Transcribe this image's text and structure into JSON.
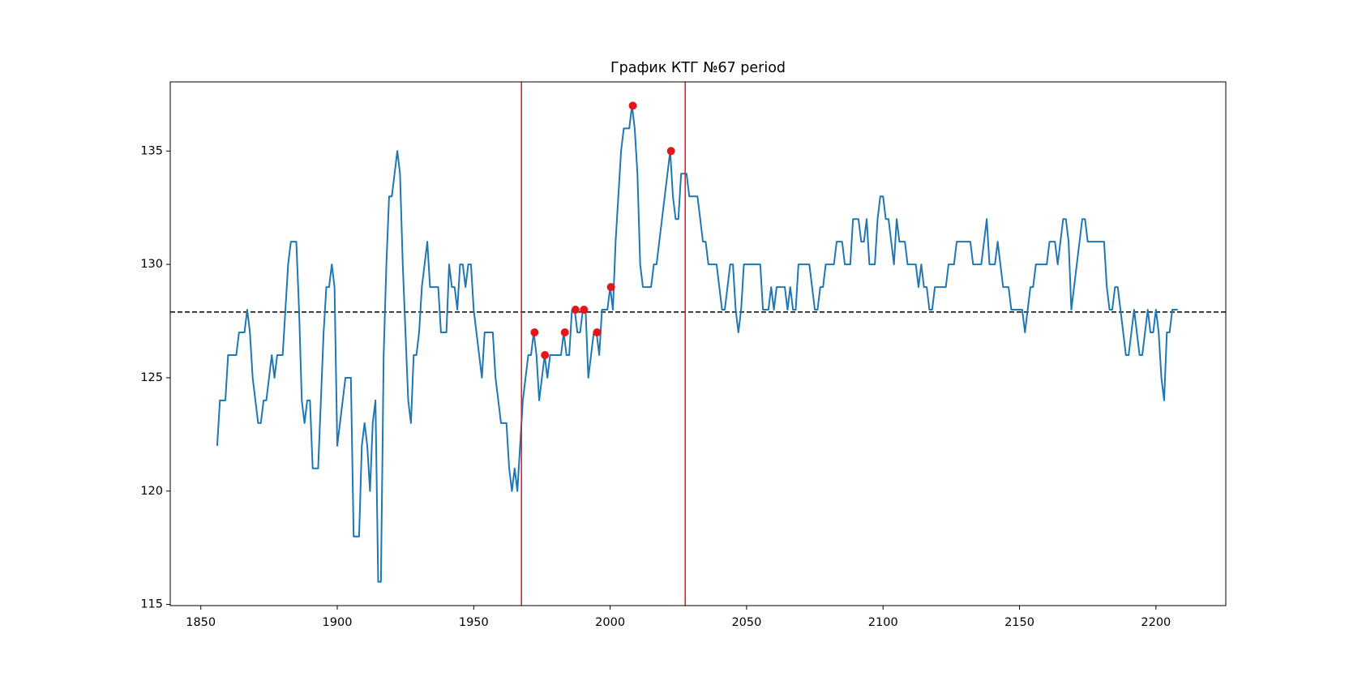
{
  "chart_data": {
    "type": "line",
    "title": "График КТГ №67 period",
    "xlim": [
      1838.8,
      2225.6
    ],
    "xticks": [
      1850,
      1900,
      1950,
      2000,
      2050,
      2100,
      2150,
      2200
    ],
    "ylim": [
      114.95,
      138.05
    ],
    "yticks": [
      115,
      120,
      125,
      130,
      135
    ],
    "x": [
      1856,
      1857,
      1858,
      1859,
      1860,
      1861,
      1862,
      1863,
      1864,
      1865,
      1866,
      1867,
      1868,
      1869,
      1870,
      1871,
      1872,
      1873,
      1874,
      1875,
      1876,
      1877,
      1878,
      1879,
      1880,
      1881,
      1882,
      1883,
      1884,
      1885,
      1886,
      1887,
      1888,
      1889,
      1890,
      1891,
      1892,
      1893,
      1894,
      1895,
      1896,
      1897,
      1898,
      1899,
      1900,
      1901,
      1902,
      1903,
      1904,
      1905,
      1906,
      1907,
      1908,
      1909,
      1910,
      1911,
      1912,
      1913,
      1914,
      1915,
      1916,
      1917,
      1918,
      1919,
      1920,
      1921,
      1922,
      1923,
      1924,
      1925,
      1926,
      1927,
      1928,
      1929,
      1930,
      1931,
      1932,
      1933,
      1934,
      1935,
      1936,
      1937,
      1938,
      1939,
      1940,
      1941,
      1942,
      1943,
      1944,
      1945,
      1946,
      1947,
      1948,
      1949,
      1950,
      1951,
      1952,
      1953,
      1954,
      1955,
      1956,
      1957,
      1958,
      1959,
      1960,
      1961,
      1962,
      1963,
      1964,
      1965,
      1966,
      1967,
      1968,
      1969,
      1970,
      1971,
      1972,
      1973,
      1974,
      1975,
      1976,
      1977,
      1978,
      1979,
      1980,
      1981,
      1982,
      1983,
      1984,
      1985,
      1986,
      1987,
      1988,
      1989,
      1990,
      1991,
      1992,
      1993,
      1994,
      1995,
      1996,
      1997,
      1998,
      1999,
      2000,
      2001,
      2002,
      2003,
      2004,
      2005,
      2006,
      2007,
      2008,
      2009,
      2010,
      2011,
      2012,
      2013,
      2014,
      2015,
      2016,
      2017,
      2018,
      2019,
      2020,
      2021,
      2022,
      2023,
      2024,
      2025,
      2026,
      2027,
      2028,
      2029,
      2030,
      2031,
      2032,
      2033,
      2034,
      2035,
      2036,
      2037,
      2038,
      2039,
      2040,
      2041,
      2042,
      2043,
      2044,
      2045,
      2046,
      2047,
      2048,
      2049,
      2050,
      2051,
      2052,
      2053,
      2054,
      2055,
      2056,
      2057,
      2058,
      2059,
      2060,
      2061,
      2062,
      2063,
      2064,
      2065,
      2066,
      2067,
      2068,
      2069,
      2070,
      2071,
      2072,
      2073,
      2074,
      2075,
      2076,
      2077,
      2078,
      2079,
      2080,
      2081,
      2082,
      2083,
      2084,
      2085,
      2086,
      2087,
      2088,
      2089,
      2090,
      2091,
      2092,
      2093,
      2094,
      2095,
      2096,
      2097,
      2098,
      2099,
      2100,
      2101,
      2102,
      2103,
      2104,
      2105,
      2106,
      2107,
      2108,
      2109,
      2110,
      2111,
      2112,
      2113,
      2114,
      2115,
      2116,
      2117,
      2118,
      2119,
      2120,
      2121,
      2122,
      2123,
      2124,
      2125,
      2126,
      2127,
      2128,
      2129,
      2130,
      2131,
      2132,
      2133,
      2134,
      2135,
      2136,
      2137,
      2138,
      2139,
      2140,
      2141,
      2142,
      2143,
      2144,
      2145,
      2146,
      2147,
      2148,
      2149,
      2150,
      2151,
      2152,
      2153,
      2154,
      2155,
      2156,
      2157,
      2158,
      2159,
      2160,
      2161,
      2162,
      2163,
      2164,
      2165,
      2166,
      2167,
      2168,
      2169,
      2170,
      2171,
      2172,
      2173,
      2174,
      2175,
      2176,
      2177,
      2178,
      2179,
      2180,
      2181,
      2182,
      2183,
      2184,
      2185,
      2186,
      2187,
      2188,
      2189,
      2190,
      2191,
      2192,
      2193,
      2194,
      2195,
      2196,
      2197,
      2198,
      2199,
      2200,
      2201,
      2202,
      2203,
      2204,
      2205,
      2206,
      2207,
      2208
    ],
    "series": [
      {
        "color": "#1f77b4",
        "values": [
          122,
          124,
          124,
          124,
          126,
          126,
          126,
          126,
          127,
          127,
          127,
          128,
          127,
          125,
          124,
          123,
          123,
          124,
          124,
          125,
          126,
          125,
          126,
          126,
          126,
          128,
          130,
          131,
          131,
          131,
          128,
          124,
          123,
          124,
          124,
          121,
          121,
          121,
          124,
          127,
          129,
          129,
          130,
          129,
          122,
          123,
          124,
          125,
          125,
          125,
          118,
          118,
          118,
          122,
          123,
          122,
          120,
          123,
          124,
          116,
          116,
          126,
          130,
          133,
          133,
          134,
          135,
          134,
          130,
          127,
          124,
          123,
          126,
          126,
          127,
          129,
          130,
          131,
          129,
          129,
          129,
          129,
          127,
          127,
          127,
          130,
          129,
          129,
          128,
          130,
          130,
          129,
          130,
          130,
          128,
          127,
          126,
          125,
          127,
          127,
          127,
          127,
          125,
          124,
          123,
          123,
          123,
          121,
          120,
          121,
          120,
          122,
          124,
          125,
          126,
          126,
          127,
          126,
          124,
          125,
          126,
          125,
          126,
          126,
          126,
          126,
          126,
          127,
          126,
          126,
          128,
          128,
          127,
          127,
          128,
          128,
          125,
          126,
          127,
          127,
          126,
          128,
          128,
          128,
          129,
          128,
          131,
          133,
          135,
          136,
          136,
          136,
          137,
          136,
          134,
          130,
          129,
          129,
          129,
          129,
          130,
          130,
          131,
          132,
          133,
          134,
          135,
          133,
          132,
          132,
          134,
          134,
          134,
          133,
          133,
          133,
          133,
          132,
          131,
          131,
          130,
          130,
          130,
          130,
          129,
          128,
          128,
          129,
          130,
          130,
          128,
          127,
          128,
          130,
          130,
          130,
          130,
          130,
          130,
          130,
          128,
          128,
          128,
          129,
          128,
          129,
          129,
          129,
          129,
          128,
          129,
          128,
          128,
          130,
          130,
          130,
          130,
          130,
          129,
          128,
          128,
          129,
          129,
          130,
          130,
          130,
          130,
          131,
          131,
          131,
          130,
          130,
          130,
          132,
          132,
          132,
          131,
          131,
          132,
          130,
          130,
          130,
          132,
          133,
          133,
          132,
          132,
          131,
          130,
          132,
          131,
          131,
          131,
          130,
          130,
          130,
          130,
          129,
          130,
          129,
          129,
          128,
          128,
          129,
          129,
          129,
          129,
          129,
          130,
          130,
          130,
          131,
          131,
          131,
          131,
          131,
          131,
          130,
          130,
          130,
          130,
          131,
          132,
          130,
          130,
          130,
          131,
          130,
          129,
          129,
          129,
          128,
          128,
          128,
          128,
          128,
          127,
          128,
          129,
          129,
          130,
          130,
          130,
          130,
          130,
          131,
          131,
          131,
          130,
          131,
          132,
          132,
          131,
          128,
          129,
          130,
          131,
          132,
          132,
          131,
          131,
          131,
          131,
          131,
          131,
          131,
          129,
          128,
          128,
          129,
          129,
          128,
          127,
          126,
          126,
          127,
          128,
          127,
          126,
          126,
          127,
          128,
          127,
          127,
          128,
          127,
          125,
          124,
          127,
          127,
          128,
          128,
          128
        ]
      }
    ],
    "markers": {
      "color": "#e8141c",
      "x": [
        1972.3,
        1976.1,
        1983.4,
        1987.3,
        1990.4,
        1995.2,
        2000.3,
        2008.3,
        2022.3
      ],
      "values": [
        127,
        126,
        127,
        128,
        128,
        127,
        129,
        137,
        135
      ]
    },
    "vlines": {
      "color": "#e8141c",
      "values": [
        1967.5,
        2027.5
      ]
    },
    "hline": {
      "color": "#000000",
      "value": 127.9,
      "dashed": true
    }
  }
}
